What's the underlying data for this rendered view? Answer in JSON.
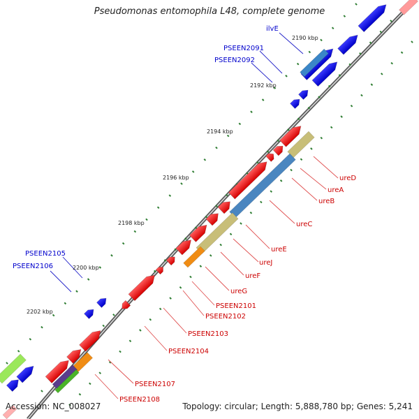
{
  "title": "Pseudomonas entomophila L48, complete genome",
  "footer": {
    "accession": "Accession: NC_008027",
    "summary": "Topology: circular; Length: 5,888,780 bp; Genes: 5,241"
  },
  "colors": {
    "backbone": "#8a8a8a",
    "forward_gene": "#0000ee",
    "reverse_gene": "#ee0000",
    "tick_dot": "#2e7d32",
    "label_blue": "#0000cc",
    "label_red": "#cc0000",
    "leader_blue": "#1f1fc8",
    "leader_red": "#e05050"
  },
  "ticks": [
    "2190 kbp",
    "2192 kbp",
    "2194 kbp",
    "2196 kbp",
    "2198 kbp",
    "2200 kbp",
    "2202 kbp"
  ],
  "gene_labels": [
    "ilvE",
    "PSEEN2091",
    "PSEEN2092",
    "PSEEN2105",
    "PSEEN2106",
    "ureD",
    "ureA",
    "ureB",
    "ureC",
    "ureE",
    "ureJ",
    "ureF",
    "ureG",
    "PSEEN2101",
    "PSEEN2102",
    "PSEEN2103",
    "PSEEN2104",
    "PSEEN2107",
    "PSEEN2108"
  ]
}
